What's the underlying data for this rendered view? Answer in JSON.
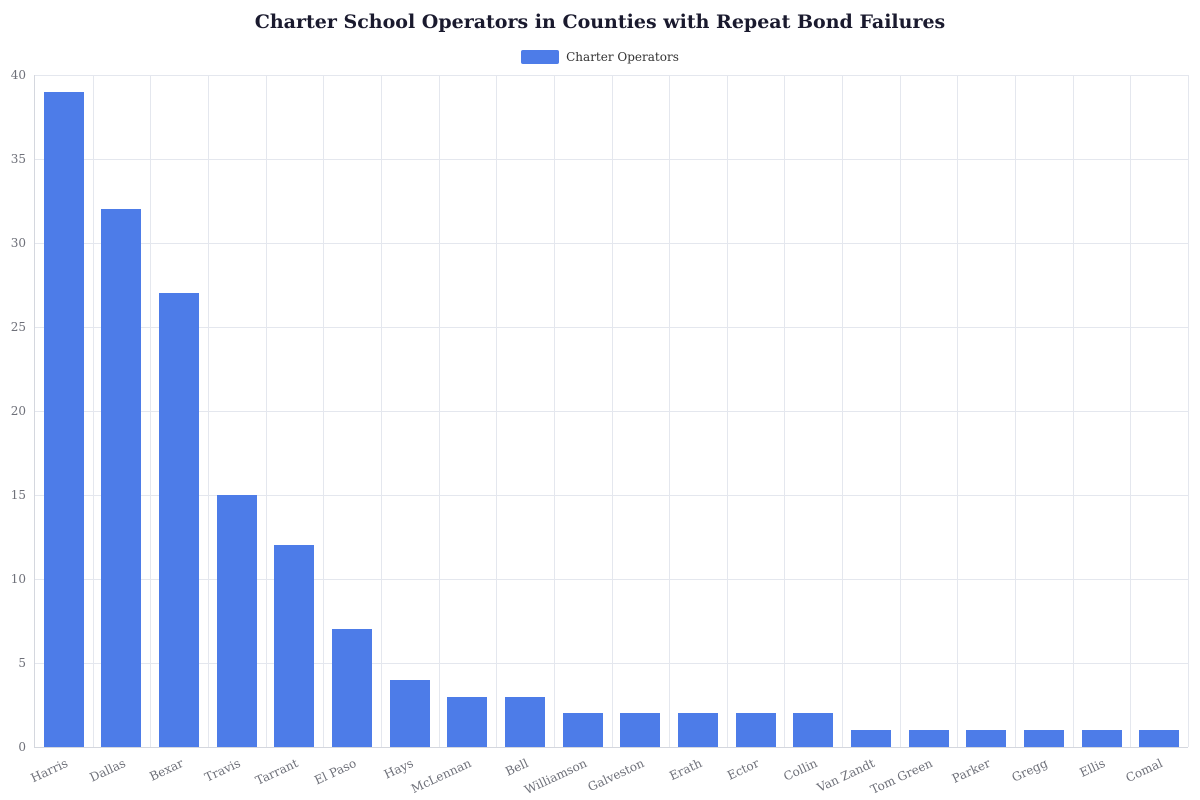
{
  "chart_data": {
    "type": "bar",
    "title": "Charter School Operators in Counties with Repeat Bond Failures",
    "series_name": "Charter Operators",
    "legend": [
      "Charter Operators"
    ],
    "legend_position": "top",
    "categories": [
      "Harris",
      "Dallas",
      "Bexar",
      "Travis",
      "Tarrant",
      "El Paso",
      "Hays",
      "McLennan",
      "Bell",
      "Williamson",
      "Galveston",
      "Erath",
      "Ector",
      "Collin",
      "Van Zandt",
      "Tom Green",
      "Parker",
      "Gregg",
      "Ellis",
      "Comal"
    ],
    "values": [
      39,
      32,
      27,
      15,
      12,
      7,
      4,
      3,
      3,
      2,
      2,
      2,
      2,
      2,
      1,
      1,
      1,
      1,
      1,
      1
    ],
    "xlabel": "",
    "ylabel": "",
    "ylim": [
      0,
      40
    ],
    "yticks": [
      0,
      5,
      10,
      15,
      20,
      25,
      30,
      35,
      40
    ],
    "grid": true,
    "bar_color": "#4d7ce8"
  }
}
